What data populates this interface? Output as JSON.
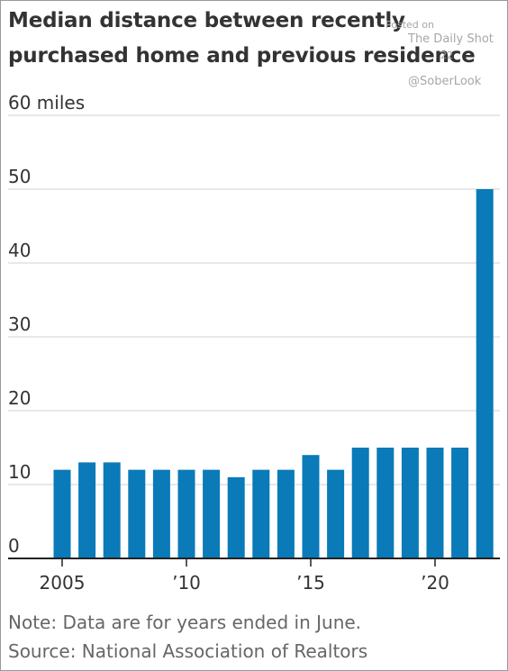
{
  "title_lines": [
    "Median distance between recently",
    "purchased home and previous residence"
  ],
  "watermark": {
    "posted": "Posted on",
    "site": "The Daily Shot",
    "date_fragment": "22",
    "handle": "@SoberLook"
  },
  "footer": {
    "note": "Note: Data are for years ended in June.",
    "source": "Source: National Association of Realtors"
  },
  "chart_data": {
    "type": "bar",
    "title": "Median distance between recently purchased home and previous residence",
    "xlabel": "",
    "ylabel": "",
    "unit_label": "miles",
    "categories": [
      "2005",
      "2006",
      "2007",
      "2008",
      "2009",
      "2010",
      "2011",
      "2012",
      "2013",
      "2014",
      "2015",
      "2016",
      "2017",
      "2018",
      "2019",
      "2020",
      "2021",
      "2022"
    ],
    "values": [
      12,
      13,
      13,
      12,
      12,
      12,
      12,
      11,
      12,
      12,
      14,
      12,
      15,
      15,
      15,
      15,
      15,
      50
    ],
    "ylim": [
      0,
      60
    ],
    "yticks": [
      0,
      10,
      20,
      30,
      40,
      50,
      60
    ],
    "ytick_labels": [
      "0",
      "10",
      "20",
      "30",
      "40",
      "50",
      "60"
    ],
    "xtick_labels": [
      {
        "category": "2005",
        "label": "2005"
      },
      {
        "category": "2010",
        "label": "’10"
      },
      {
        "category": "2015",
        "label": "’15"
      },
      {
        "category": "2020",
        "label": "’20"
      }
    ],
    "grid": true,
    "legend": "none",
    "bar_color": "#0a7ab8",
    "grid_color": "#d9d9d9",
    "axis_color": "#222222"
  }
}
